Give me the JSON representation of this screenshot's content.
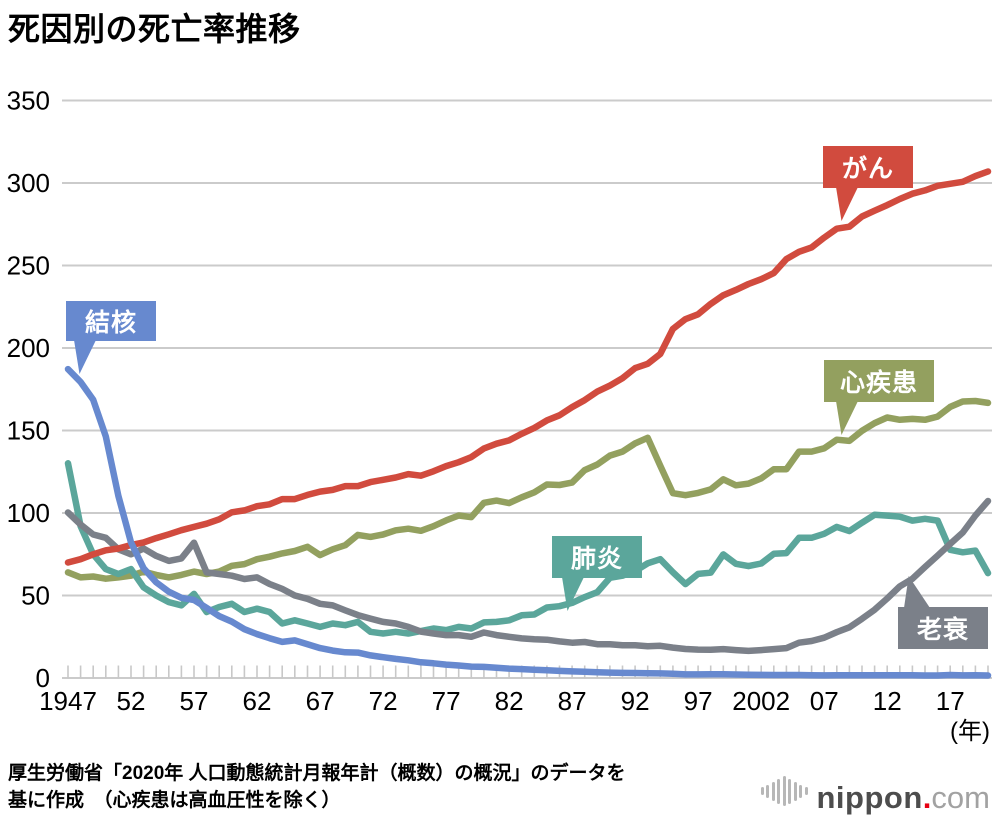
{
  "title": "死因別の死亡率推移",
  "source_note": {
    "line1": "厚生労働省「2020年 人口動態統計月報年計（概数）の概況」のデータを",
    "line2": "基に作成　（心疾患は高血圧性を除く）"
  },
  "logo": {
    "name": "nippon",
    "dot": ".",
    "tld": "com"
  },
  "chart_data": {
    "type": "line",
    "title": "死因別の死亡率推移",
    "x_unit_label": "(年)",
    "grid": "horizontal",
    "legend_position": "callout-bubbles-on-lines",
    "y_range": [
      0,
      350
    ],
    "y_ticks": [
      0,
      50,
      100,
      150,
      200,
      250,
      300,
      350
    ],
    "x_tick_labels": [
      {
        "year": 1947,
        "label": "1947"
      },
      {
        "year": 1952,
        "label": "52"
      },
      {
        "year": 1957,
        "label": "57"
      },
      {
        "year": 1962,
        "label": "62"
      },
      {
        "year": 1967,
        "label": "67"
      },
      {
        "year": 1972,
        "label": "72"
      },
      {
        "year": 1977,
        "label": "77"
      },
      {
        "year": 1982,
        "label": "82"
      },
      {
        "year": 1987,
        "label": "87"
      },
      {
        "year": 1992,
        "label": "92"
      },
      {
        "year": 1997,
        "label": "97"
      },
      {
        "year": 2002,
        "label": "2002"
      },
      {
        "year": 2007,
        "label": "07"
      },
      {
        "year": 2012,
        "label": "12"
      },
      {
        "year": 2017,
        "label": "17"
      }
    ],
    "years": [
      1947,
      1948,
      1949,
      1950,
      1951,
      1952,
      1953,
      1954,
      1955,
      1956,
      1957,
      1958,
      1959,
      1960,
      1961,
      1962,
      1963,
      1964,
      1965,
      1966,
      1967,
      1968,
      1969,
      1970,
      1971,
      1972,
      1973,
      1974,
      1975,
      1976,
      1977,
      1978,
      1979,
      1980,
      1981,
      1982,
      1983,
      1984,
      1985,
      1986,
      1987,
      1988,
      1989,
      1990,
      1991,
      1992,
      1993,
      1994,
      1995,
      1996,
      1997,
      1998,
      1999,
      2000,
      2001,
      2002,
      2003,
      2004,
      2005,
      2006,
      2007,
      2008,
      2009,
      2010,
      2011,
      2012,
      2013,
      2014,
      2015,
      2016,
      2017,
      2018,
      2019,
      2020
    ],
    "series": [
      {
        "name": "心疾患",
        "color": "#93a05f",
        "values": [
          64,
          61,
          61.5,
          60.2,
          61,
          62,
          64.5,
          62.5,
          61,
          62.5,
          64.5,
          63,
          64.5,
          68,
          69,
          72,
          73.5,
          75.5,
          77,
          79.5,
          74.5,
          78,
          80.5,
          86.7,
          85.5,
          87,
          89.5,
          90.5,
          89.2,
          92,
          95.5,
          98.5,
          97.5,
          106.2,
          107.5,
          106,
          109.5,
          112.5,
          117.3,
          117,
          118.4,
          126,
          129.4,
          134.8,
          137.2,
          142.2,
          145.6,
          128.6,
          112,
          110.8,
          112.2,
          114.3,
          120.4,
          116.8,
          117.8,
          121,
          126.5,
          126.5,
          137.2,
          137.2,
          139.2,
          144.4,
          143.7,
          149.8,
          154.5,
          157.9,
          156.5,
          157,
          156.5,
          158.4,
          164.3,
          167.6,
          167.9,
          166.7
        ]
      },
      {
        "name": "肺炎",
        "color": "#5ba69b",
        "values": [
          130.1,
          92,
          75,
          66,
          63,
          66,
          55,
          50,
          46,
          44,
          51,
          40,
          43,
          45,
          40,
          42,
          40,
          33,
          35,
          33,
          31,
          33,
          32,
          34,
          28,
          27,
          28,
          27,
          28.4,
          30,
          29,
          31,
          30,
          33.7,
          34,
          35,
          38,
          38.5,
          42.7,
          43.5,
          45.5,
          49,
          52,
          60.7,
          62,
          64.8,
          69.5,
          72,
          64.1,
          56.9,
          63.1,
          63.8,
          74.9,
          69.2,
          67.8,
          69.4,
          75.3,
          75.7,
          85,
          85,
          87.4,
          91.6,
          89,
          94.1,
          98.9,
          98.4,
          97.8,
          95.4,
          96.5,
          95.4,
          77.7,
          76.2,
          77.2,
          63.6
        ]
      },
      {
        "name": "老衰",
        "color": "#7b8089",
        "values": [
          100.3,
          93,
          87,
          85,
          78,
          75,
          78.5,
          74,
          71,
          72.5,
          82,
          64,
          63,
          62,
          60,
          61,
          57,
          54,
          50,
          48,
          45,
          44,
          41,
          38.1,
          36,
          34,
          33,
          31,
          28.1,
          27,
          26,
          26,
          25,
          27.6,
          26,
          25,
          24,
          23.5,
          23.2,
          22.2,
          21.4,
          21.8,
          20.5,
          20.5,
          19.8,
          19.9,
          19.2,
          19.5,
          18.4,
          17.6,
          17.2,
          17.1,
          17.5,
          16.9,
          16.4,
          16.9,
          17.5,
          18.1,
          21.4,
          22.4,
          24.4,
          27.8,
          30.7,
          35.9,
          41.4,
          48.2,
          55.5,
          60.1,
          67.3,
          74.2,
          81.3,
          88.2,
          98.5,
          107.3
        ]
      },
      {
        "name": "がん",
        "color": "#d14b3e",
        "values": [
          70,
          72,
          75,
          77.4,
          78.5,
          80.6,
          82.2,
          84.8,
          87.1,
          89.6,
          91.6,
          93.5,
          96.2,
          100.4,
          101.6,
          104.1,
          105.3,
          108.4,
          108.4,
          111,
          113,
          114,
          116.3,
          116.3,
          118.7,
          120.1,
          121.5,
          123.6,
          122.6,
          125.3,
          128.4,
          130.8,
          133.9,
          139.1,
          142,
          144,
          148,
          151.6,
          156.1,
          159.2,
          164.2,
          168.4,
          173.6,
          177.2,
          181.7,
          187.8,
          190.4,
          196.4,
          211.6,
          217.5,
          220.4,
          226.7,
          232,
          235.2,
          238.8,
          241.7,
          245.4,
          253.9,
          258.3,
          261,
          266.9,
          272.3,
          273.5,
          279.7,
          283.2,
          286.6,
          290.3,
          293.5,
          295.5,
          298.3,
          299.5,
          300.7,
          304.2,
          307
        ]
      },
      {
        "name": "結核",
        "color": "#6789cf",
        "values": [
          187.2,
          179.4,
          168.6,
          146.4,
          110.3,
          82.2,
          66.5,
          58,
          52.3,
          48.6,
          47.3,
          42.5,
          37.5,
          34.2,
          29.6,
          26.6,
          24.1,
          21.9,
          22.8,
          20.5,
          18.1,
          16.6,
          15.6,
          15.4,
          13.7,
          12.6,
          11.6,
          10.7,
          9.5,
          8.9,
          8.1,
          7.6,
          6.9,
          6.7,
          6.2,
          5.7,
          5.4,
          5,
          4.7,
          4.3,
          4,
          3.8,
          3.5,
          3.3,
          3.1,
          3,
          2.9,
          2.8,
          2.6,
          2.2,
          2.2,
          2.3,
          2.3,
          2.1,
          2,
          1.9,
          1.8,
          1.8,
          1.8,
          1.7,
          1.6,
          1.7,
          1.7,
          1.7,
          1.7,
          1.7,
          1.7,
          1.7,
          1.5,
          1.5,
          1.8,
          1.6,
          1.7,
          1.5
        ]
      }
    ]
  }
}
